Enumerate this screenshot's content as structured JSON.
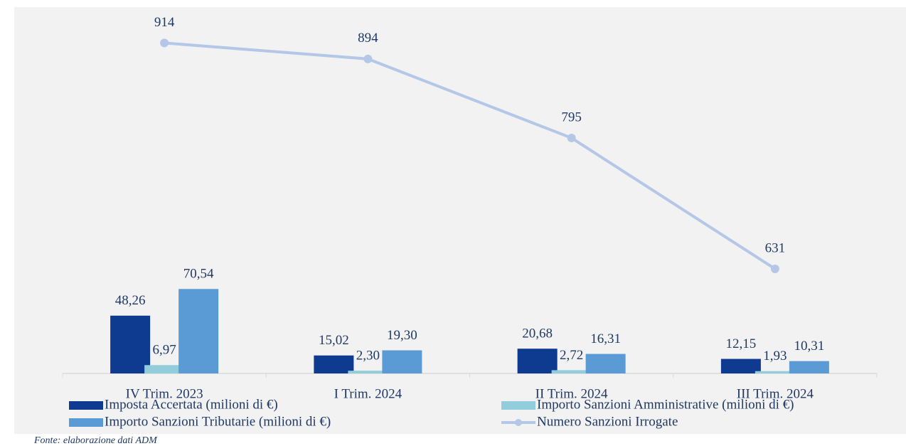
{
  "chart_data": {
    "type": "bar",
    "categories": [
      "IV Trim. 2023",
      "I Trim. 2024",
      "II Trim. 2024",
      "III Trim. 2024"
    ],
    "ylim": [
      0,
      300
    ],
    "y2lim": [
      500,
      950
    ],
    "series": [
      {
        "name": "Imposta Accertata (milioni di €)",
        "color": "#0e3a8f",
        "type": "bar",
        "values": [
          48.26,
          15.02,
          20.68,
          12.15
        ],
        "value_labels": [
          "48,26",
          "15,02",
          "20,68",
          "12,15"
        ]
      },
      {
        "name": "Importo Sanzioni Amministrative (milioni di €)",
        "color": "#92cddc",
        "type": "bar",
        "values": [
          6.97,
          2.3,
          2.72,
          1.93
        ],
        "value_labels": [
          "6,97",
          "2,30",
          "2,72",
          "1,93"
        ]
      },
      {
        "name": "Importo Sanzioni Tributarie (milioni di €)",
        "color": "#5b9bd5",
        "type": "bar",
        "values": [
          70.54,
          19.3,
          16.31,
          10.31
        ],
        "value_labels": [
          "70,54",
          "19,30",
          "16,31",
          "10,31"
        ]
      },
      {
        "name": "Numero Sanzioni Irrogate",
        "color": "#b4c7e7",
        "type": "line",
        "axis": "y2",
        "values": [
          914,
          894,
          795,
          631
        ]
      }
    ],
    "note": "Fonte: elaborazione dati ADM"
  }
}
